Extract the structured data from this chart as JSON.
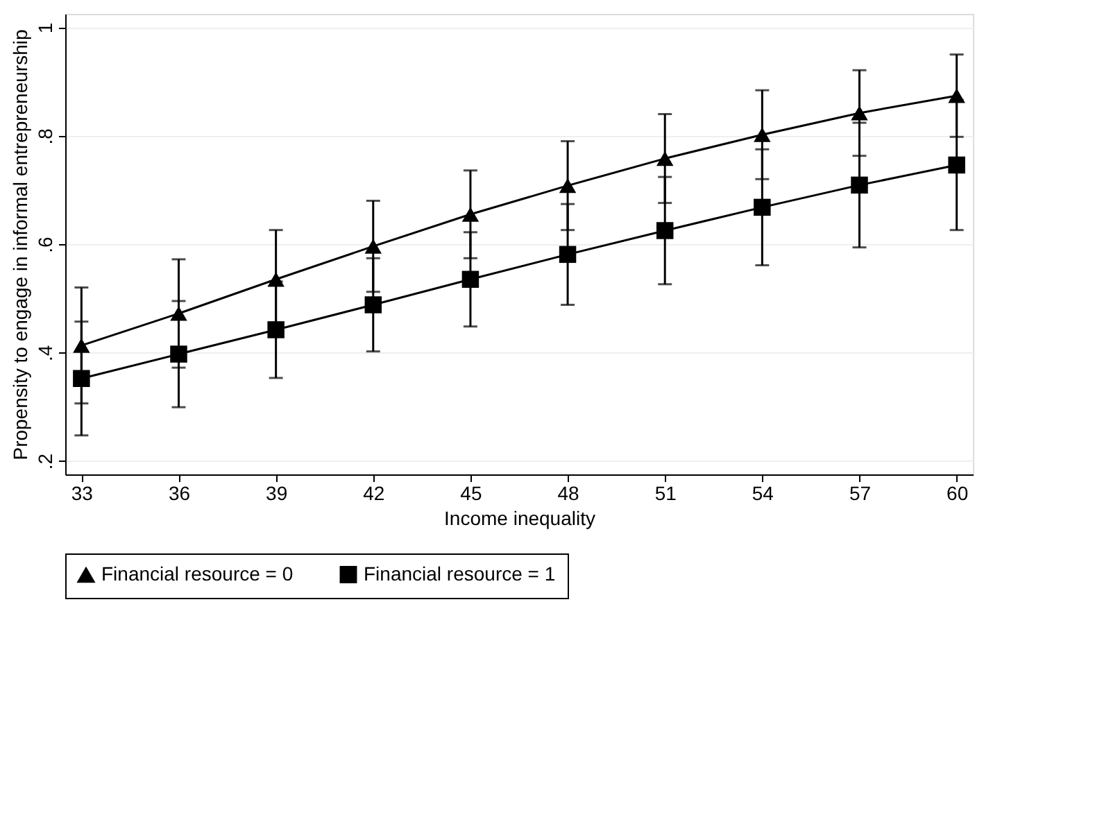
{
  "chart_data": {
    "type": "line",
    "xlabel": "Income inequality",
    "ylabel": "Propensity to engage in informal entrepreneurship",
    "x": [
      33,
      36,
      39,
      42,
      45,
      48,
      51,
      54,
      57,
      60
    ],
    "series": [
      {
        "name": "Financial resource = 0",
        "color": "#000000",
        "marker": "triangle",
        "values": [
          0.413,
          0.472,
          0.535,
          0.596,
          0.655,
          0.708,
          0.758,
          0.802,
          0.842,
          0.874
        ],
        "errors": [
          0.107,
          0.1,
          0.091,
          0.084,
          0.081,
          0.082,
          0.082,
          0.082,
          0.079,
          0.076
        ]
      },
      {
        "name": "Financial resource = 1",
        "color": "#000000",
        "marker": "square",
        "values": [
          0.352,
          0.397,
          0.442,
          0.488,
          0.535,
          0.581,
          0.625,
          0.668,
          0.709,
          0.746
        ],
        "errors": [
          0.105,
          0.098,
          0.089,
          0.086,
          0.087,
          0.093,
          0.099,
          0.107,
          0.115,
          0.12
        ]
      }
    ],
    "xlim": [
      32.5,
      60.5
    ],
    "xticks": [
      33,
      36,
      39,
      42,
      45,
      48,
      51,
      54,
      57,
      60
    ],
    "ylim": [
      0.175,
      1.025
    ],
    "yticks": [
      {
        "value": 0.2,
        "label": ".2"
      },
      {
        "value": 0.4,
        "label": ".4"
      },
      {
        "value": 0.6,
        "label": ".6"
      },
      {
        "value": 0.8,
        "label": ".8"
      },
      {
        "value": 1,
        "label": "1"
      }
    ],
    "grid": "y",
    "legend": "bottom",
    "line_style": "solid"
  }
}
